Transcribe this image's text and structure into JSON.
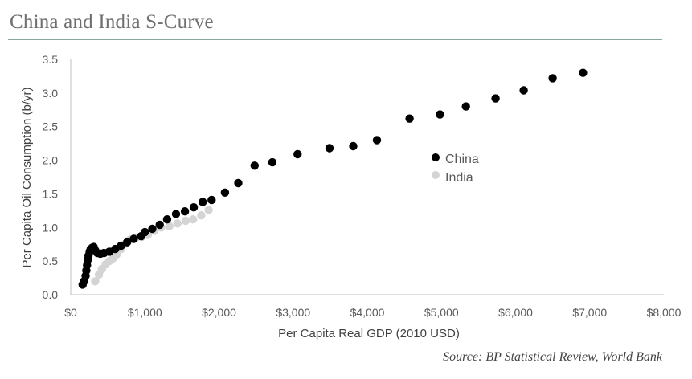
{
  "title": "China and India S-Curve",
  "source": "Source: BP Statistical Review, World Bank",
  "colors": {
    "china": "#000000",
    "india": "#d4d4d4",
    "axis": "#bfbfbf"
  },
  "chart_data": {
    "type": "scatter",
    "xlabel": "Per Capita Real GDP (2010 USD)",
    "ylabel": "Per Capita Oil Consumption (b/yr)",
    "xlim": [
      0,
      8000
    ],
    "ylim": [
      0,
      3.5
    ],
    "x_ticks": [
      "$0",
      "$1,000",
      "$2,000",
      "$3,000",
      "$4,000",
      "$5,000",
      "$6,000",
      "$7,000",
      "$8,000"
    ],
    "y_ticks": [
      "0.0",
      "0.5",
      "1.0",
      "1.5",
      "2.0",
      "2.5",
      "3.0",
      "3.5"
    ],
    "grid": false,
    "legend_position": "center-right",
    "series": [
      {
        "name": "China",
        "points": [
          [
            160,
            0.15
          ],
          [
            180,
            0.2
          ],
          [
            200,
            0.28
          ],
          [
            210,
            0.36
          ],
          [
            220,
            0.44
          ],
          [
            230,
            0.52
          ],
          [
            240,
            0.58
          ],
          [
            255,
            0.64
          ],
          [
            270,
            0.68
          ],
          [
            290,
            0.7
          ],
          [
            310,
            0.71
          ],
          [
            330,
            0.66
          ],
          [
            360,
            0.62
          ],
          [
            400,
            0.61
          ],
          [
            450,
            0.62
          ],
          [
            520,
            0.64
          ],
          [
            600,
            0.68
          ],
          [
            680,
            0.73
          ],
          [
            760,
            0.78
          ],
          [
            850,
            0.83
          ],
          [
            950,
            0.87
          ],
          [
            1000,
            0.93
          ],
          [
            1100,
            0.98
          ],
          [
            1200,
            1.04
          ],
          [
            1300,
            1.12
          ],
          [
            1420,
            1.2
          ],
          [
            1540,
            1.24
          ],
          [
            1660,
            1.3
          ],
          [
            1780,
            1.38
          ],
          [
            1900,
            1.41
          ],
          [
            2080,
            1.52
          ],
          [
            2260,
            1.66
          ],
          [
            2480,
            1.92
          ],
          [
            2720,
            1.97
          ],
          [
            3060,
            2.09
          ],
          [
            3490,
            2.18
          ],
          [
            3810,
            2.21
          ],
          [
            4130,
            2.3
          ],
          [
            4570,
            2.62
          ],
          [
            4980,
            2.68
          ],
          [
            5330,
            2.8
          ],
          [
            5730,
            2.92
          ],
          [
            6110,
            3.04
          ],
          [
            6500,
            3.22
          ],
          [
            6910,
            3.3
          ]
        ]
      },
      {
        "name": "India",
        "points": [
          [
            330,
            0.2
          ],
          [
            380,
            0.3
          ],
          [
            420,
            0.38
          ],
          [
            470,
            0.45
          ],
          [
            520,
            0.5
          ],
          [
            570,
            0.54
          ],
          [
            620,
            0.6
          ],
          [
            680,
            0.68
          ],
          [
            740,
            0.76
          ],
          [
            800,
            0.82
          ],
          [
            880,
            0.85
          ],
          [
            960,
            0.86
          ],
          [
            1040,
            0.89
          ],
          [
            1130,
            0.95
          ],
          [
            1220,
            1.0
          ],
          [
            1330,
            1.02
          ],
          [
            1440,
            1.06
          ],
          [
            1550,
            1.1
          ],
          [
            1650,
            1.12
          ],
          [
            1760,
            1.18
          ],
          [
            1860,
            1.26
          ]
        ]
      }
    ]
  }
}
